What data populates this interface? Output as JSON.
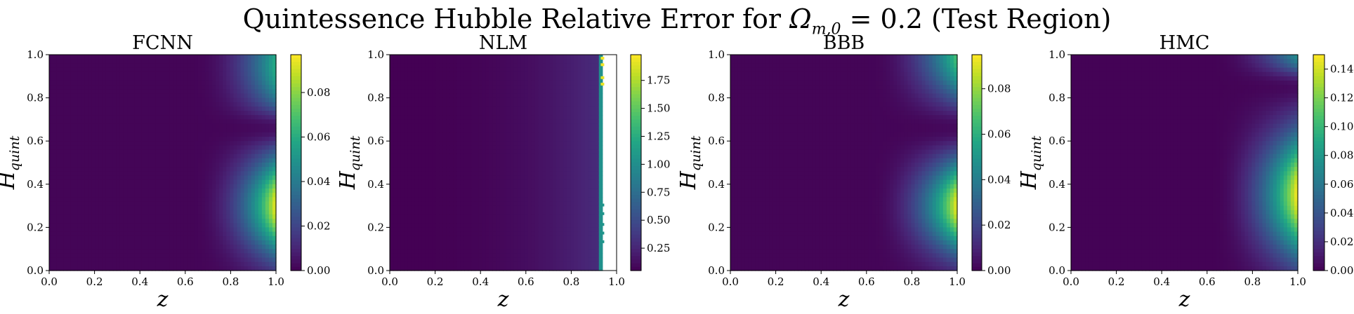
{
  "figure": {
    "title_prefix": "Quintessence Hubble Relative Error for ",
    "title_symbol": "Ω",
    "title_subscript": "m,0",
    "title_suffix": " = 0.2 (Test Region)"
  },
  "chart_data": [
    {
      "type": "heatmap",
      "title": "FCNN",
      "xlabel": "z",
      "ylabel_main": "H",
      "ylabel_sub": "quint",
      "xlim": [
        0,
        1
      ],
      "ylim": [
        0,
        1
      ],
      "xticks": [
        "0.0",
        "0.2",
        "0.4",
        "0.6",
        "0.8",
        "1.0"
      ],
      "yticks": [
        "0.0",
        "0.2",
        "0.4",
        "0.6",
        "0.8",
        "1.0"
      ],
      "colormap": "viridis",
      "color_range": [
        0,
        0.097
      ],
      "colorbar_ticks": [
        "0.00",
        "0.02",
        "0.04",
        "0.06",
        "0.08"
      ],
      "colorbar_tick_values": [
        0,
        0.02,
        0.04,
        0.06,
        0.08
      ],
      "pattern": "error grows near z = 1 with two lobes near H = 0.9 and H = 0.3, minimum near H = 0.65",
      "max_value": 0.097
    },
    {
      "type": "heatmap",
      "title": "NLM",
      "xlabel": "z",
      "ylabel_main": "H",
      "ylabel_sub": "quint",
      "xlim": [
        0,
        1
      ],
      "ylim": [
        0,
        1
      ],
      "xticks": [
        "0.0",
        "0.2",
        "0.4",
        "0.6",
        "0.8",
        "1.0"
      ],
      "yticks": [
        "0.0",
        "0.2",
        "0.4",
        "0.6",
        "0.8",
        "1.0"
      ],
      "colormap": "viridis",
      "color_range": [
        0.05,
        1.98
      ],
      "colorbar_ticks": [
        "0.25",
        "0.50",
        "0.75",
        "1.00",
        "1.25",
        "1.50",
        "1.75"
      ],
      "colorbar_tick_values": [
        0.25,
        0.5,
        0.75,
        1.0,
        1.25,
        1.5,
        1.75
      ],
      "pattern": "low error rising slowly with z, jumps to ~1.0 near z = 0.93, undefined (white) for z > 0.93",
      "cutoff_z": 0.93,
      "max_value": 1.98
    },
    {
      "type": "heatmap",
      "title": "BBB",
      "xlabel": "z",
      "ylabel_main": "H",
      "ylabel_sub": "quint",
      "xlim": [
        0,
        1
      ],
      "ylim": [
        0,
        1
      ],
      "xticks": [
        "0.0",
        "0.2",
        "0.4",
        "0.6",
        "0.8",
        "1.0"
      ],
      "yticks": [
        "0.0",
        "0.2",
        "0.4",
        "0.6",
        "0.8",
        "1.0"
      ],
      "colormap": "viridis",
      "color_range": [
        0,
        0.095
      ],
      "colorbar_ticks": [
        "0.00",
        "0.02",
        "0.04",
        "0.06",
        "0.08"
      ],
      "colorbar_tick_values": [
        0,
        0.02,
        0.04,
        0.06,
        0.08
      ],
      "pattern": "error grows near z = 1 with two lobes near H = 0.95 and H = 0.3, minimum near H = 0.65",
      "max_value": 0.095
    },
    {
      "type": "heatmap",
      "title": "HMC",
      "xlabel": "z",
      "ylabel_main": "H",
      "ylabel_sub": "quint",
      "xlim": [
        0,
        1
      ],
      "ylim": [
        0,
        1
      ],
      "xticks": [
        "0.0",
        "0.2",
        "0.4",
        "0.6",
        "0.8",
        "1.0"
      ],
      "yticks": [
        "0.0",
        "0.2",
        "0.4",
        "0.6",
        "0.8",
        "1.0"
      ],
      "colormap": "viridis",
      "color_range": [
        0,
        0.15
      ],
      "colorbar_ticks": [
        "0.00",
        "0.02",
        "0.04",
        "0.06",
        "0.08",
        "0.10",
        "0.12",
        "0.14"
      ],
      "colorbar_tick_values": [
        0,
        0.02,
        0.04,
        0.06,
        0.08,
        0.1,
        0.12,
        0.14
      ],
      "pattern": "strong lobe at z = 1 around H = 0.35, weaker lobe near H = 1.0, minimum near H = 0.85",
      "max_value": 0.15
    }
  ]
}
